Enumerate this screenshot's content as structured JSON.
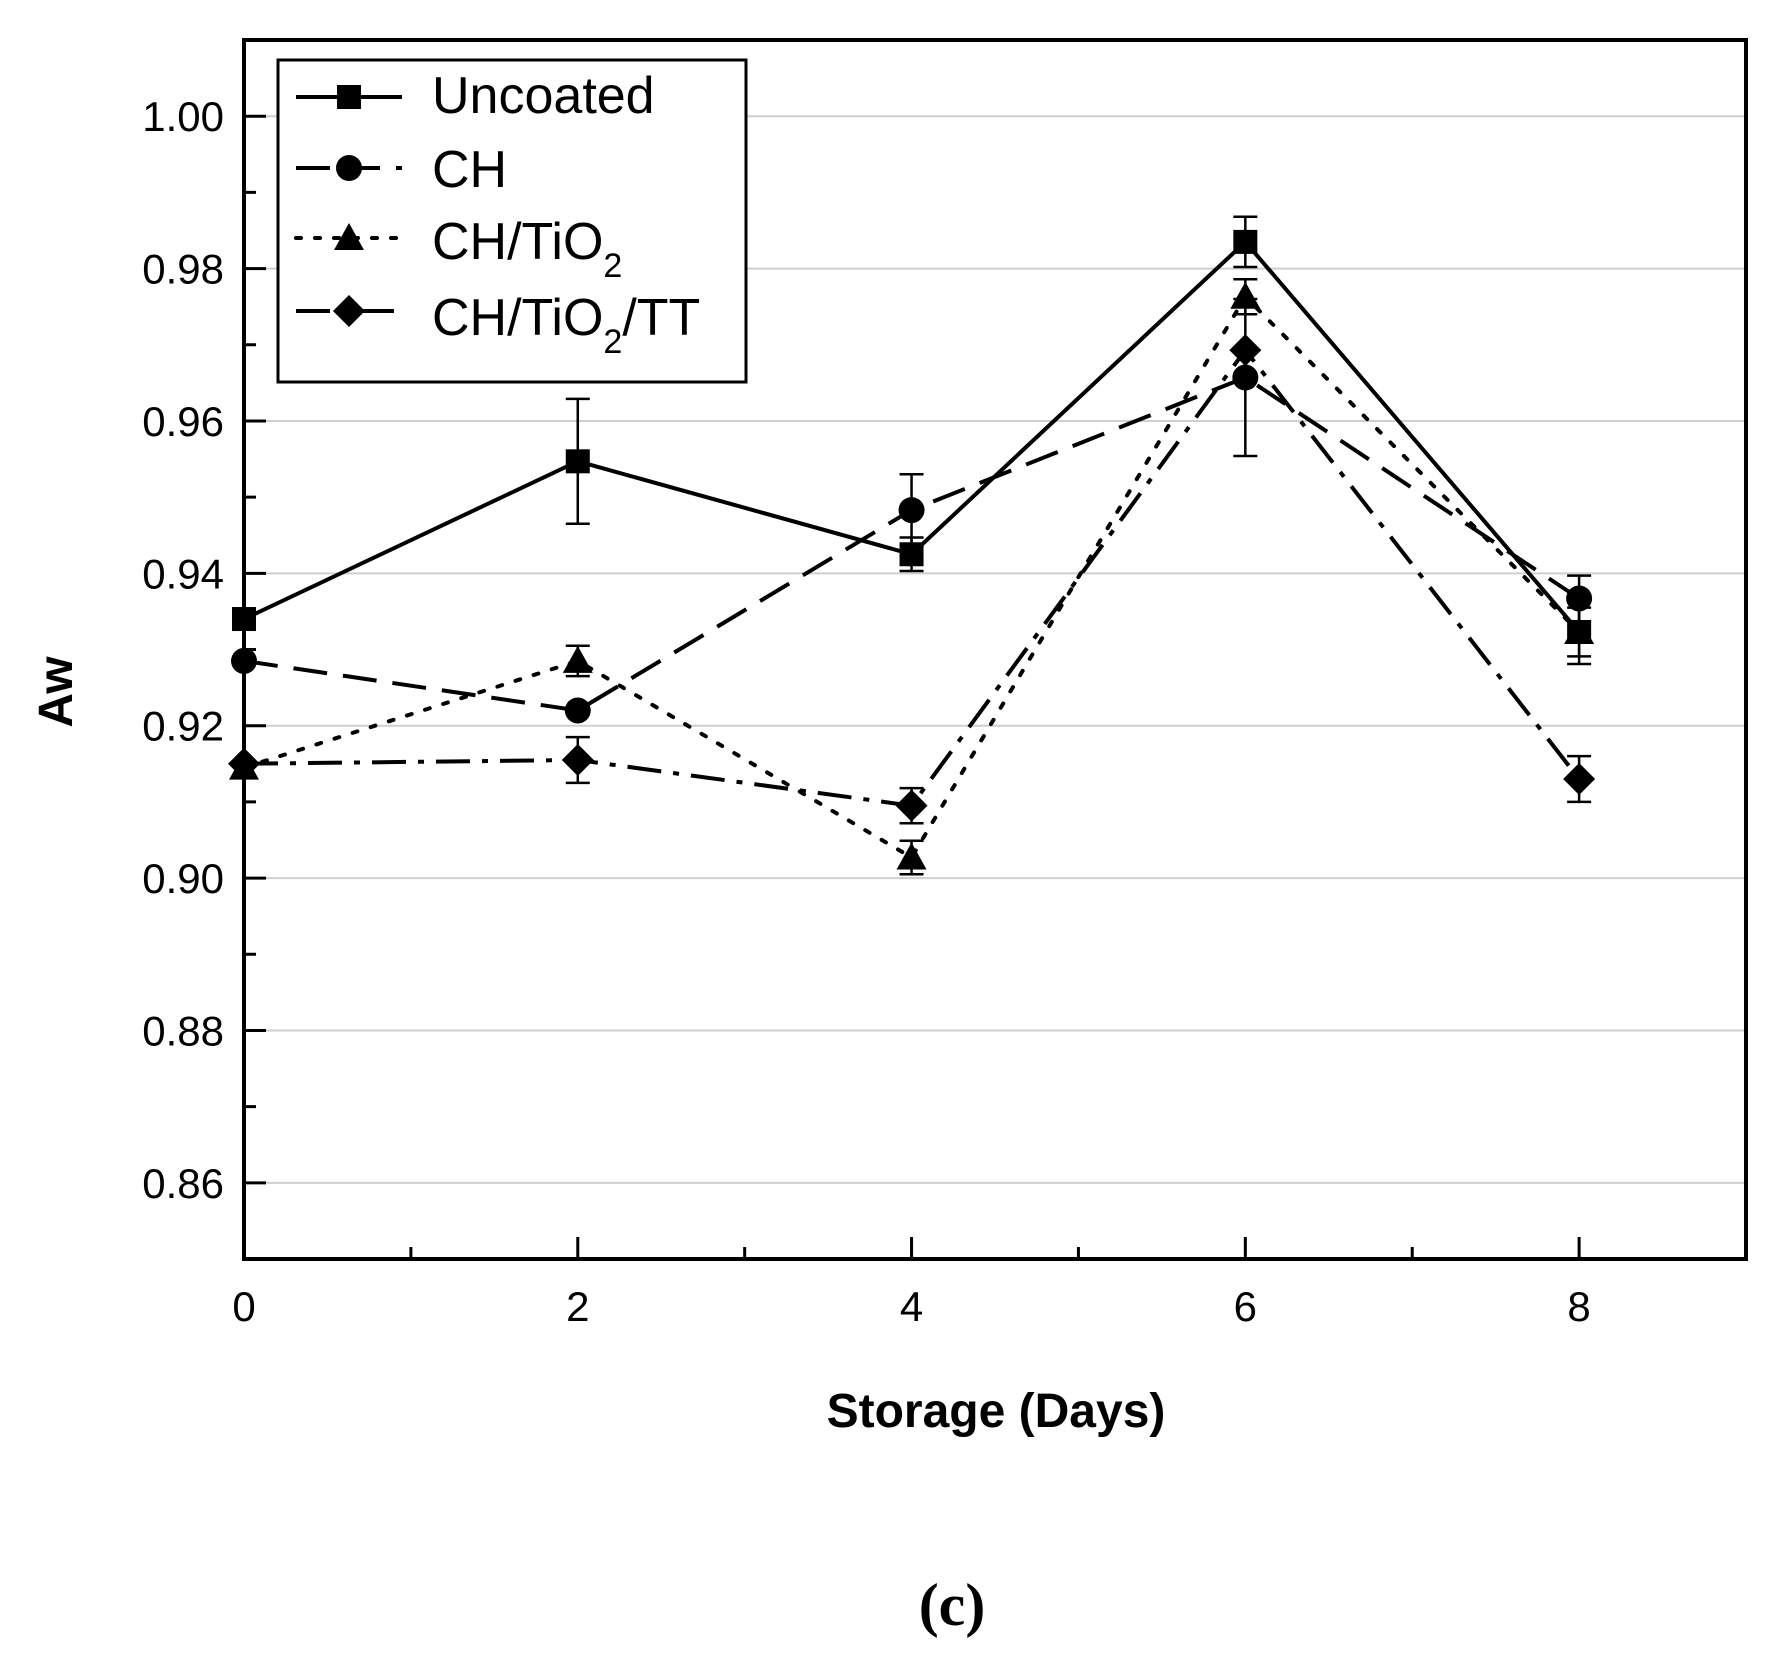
{
  "chart_data": {
    "type": "line",
    "title": "",
    "xlabel": "Storage (Days)",
    "ylabel": "Aw",
    "panel_label": "(c)",
    "xlim": [
      0,
      9
    ],
    "ylim": [
      0.85,
      1.01
    ],
    "x_ticks": [
      0,
      2,
      4,
      6,
      8
    ],
    "x_tick_labels": [
      "0",
      "2",
      "4",
      "6",
      "8"
    ],
    "y_ticks": [
      0.86,
      0.88,
      0.9,
      0.92,
      0.94,
      0.96,
      0.98,
      1.0
    ],
    "y_tick_labels": [
      "0.86",
      "0.88",
      "0.90",
      "0.92",
      "0.94",
      "0.96",
      "0.98",
      "1.00"
    ],
    "grid": "horizontal",
    "legend_position": "top-left",
    "x": [
      0,
      2,
      4,
      6,
      8
    ],
    "series": [
      {
        "name": "Uncoated",
        "label_main": "Uncoated",
        "label_sub": "",
        "label_tail": "",
        "marker": "square",
        "dash": "solid",
        "values": [
          0.934,
          0.9547,
          0.9425,
          0.9835,
          0.9323
        ],
        "errors": [
          0.0,
          0.0082,
          0.0022,
          0.0033,
          0.0032
        ]
      },
      {
        "name": "CH",
        "label_main": "CH",
        "label_sub": "",
        "label_tail": "",
        "marker": "circle",
        "dash": "dashed",
        "values": [
          0.9285,
          0.922,
          0.9483,
          0.9657,
          0.9367
        ],
        "errors": [
          0.0,
          0.0,
          0.0047,
          0.0103,
          0.003
        ]
      },
      {
        "name": "CH/TiO2",
        "label_main": "CH/TiO",
        "label_sub": "2",
        "label_tail": "",
        "marker": "triangle",
        "dash": "dotted",
        "values": [
          0.9145,
          0.9285,
          0.9027,
          0.9763,
          0.9323
        ],
        "errors": [
          0.0,
          0.002,
          0.0022,
          0.0023,
          0.0042
        ]
      },
      {
        "name": "CH/TiO2/TT",
        "label_main": "CH/TiO",
        "label_sub": "2",
        "label_tail": "/TT",
        "marker": "diamond",
        "dash": "dashdot",
        "values": [
          0.915,
          0.9155,
          0.9095,
          0.9693,
          0.913
        ],
        "errors": [
          0.0,
          0.003,
          0.0023,
          0.0,
          0.003
        ]
      }
    ]
  }
}
